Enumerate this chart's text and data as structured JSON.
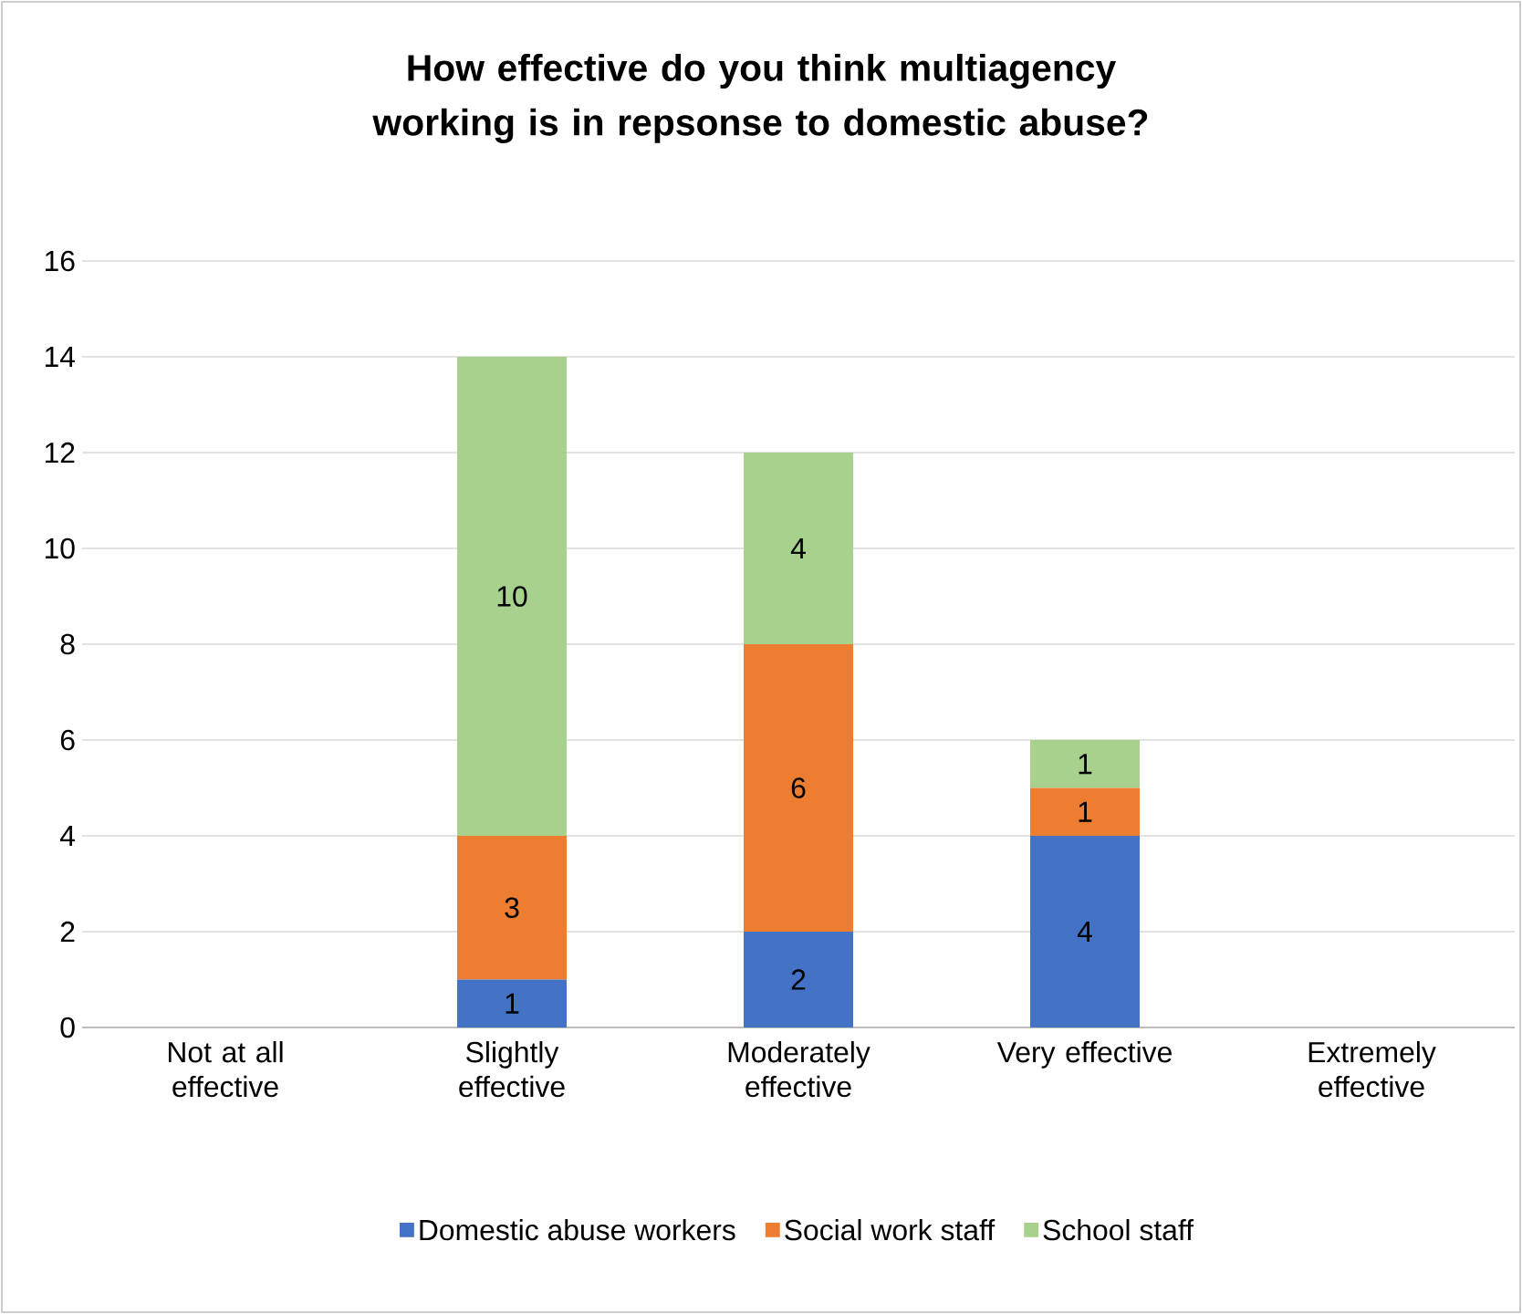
{
  "chart_data": {
    "type": "bar",
    "title": "How effective do you think multiagency working is in repsonse to domestic abuse?",
    "categories": [
      "Not at all effective",
      "Slightly effective",
      "Moderately effective",
      "Very effective",
      "Extremely effective"
    ],
    "stacked": true,
    "series": [
      {
        "name": "Domestic abuse workers",
        "color": "#4472c4",
        "values": [
          0,
          1,
          2,
          4,
          0
        ],
        "value_labels": [
          null,
          "1",
          "2",
          "4",
          null
        ]
      },
      {
        "name": "Social work staff",
        "color": "#ed7d31",
        "values": [
          0,
          3,
          6,
          1,
          0
        ],
        "value_labels": [
          null,
          "3",
          "6",
          "1",
          null
        ]
      },
      {
        "name": "School staff",
        "color": "#a9d18e",
        "values": [
          0,
          10,
          4,
          1,
          0
        ],
        "value_labels": [
          null,
          "10",
          "4",
          "1",
          null
        ]
      }
    ],
    "ylim": [
      0,
      16
    ],
    "yticks": [
      0,
      2,
      4,
      6,
      8,
      10,
      12,
      14,
      16
    ],
    "grid": "y",
    "legend": "bottom"
  }
}
